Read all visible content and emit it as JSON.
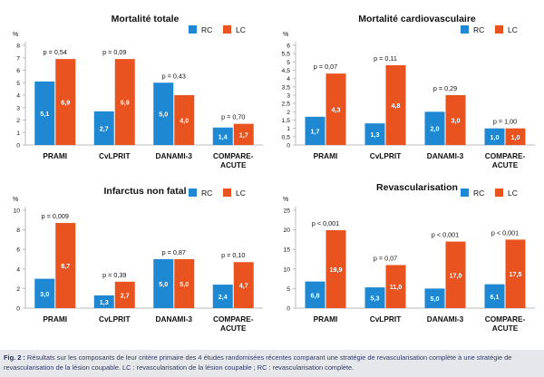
{
  "legend": {
    "rc": "RC",
    "lc": "LC"
  },
  "colors": {
    "rc": "#1e88d2",
    "lc": "#e9531f",
    "axis": "#bbbbbb",
    "text": "#111111"
  },
  "caption": {
    "label": "Fig. 2 :",
    "text": "Résultats sur les composants de leur critère primaire des 4 études randomisées récentes comparant une stratégie de revascularisation complète à une stratégie de revascularisation de la lésion coupable. LC : revascularisation de la lésion coupable ; RC : revascularisation complète."
  },
  "chart_data": [
    {
      "type": "bar",
      "title": "Mortalité totale",
      "ylabel": "%",
      "ylim": [
        0,
        8
      ],
      "yticks": [
        0,
        1,
        2,
        3,
        4,
        5,
        6,
        7,
        8
      ],
      "categories": [
        "PRAMI",
        "CvLPRIT",
        "DANAMI-3",
        "COMPARE-ACUTE"
      ],
      "category_labels": [
        [
          "PRAMI"
        ],
        [
          "CvLPRIT"
        ],
        [
          "DANAMI-3"
        ],
        [
          "COMPARE-",
          "ACUTE"
        ]
      ],
      "series": [
        {
          "name": "RC",
          "values": [
            5.1,
            2.7,
            5.0,
            1.4
          ]
        },
        {
          "name": "LC",
          "values": [
            6.9,
            6.9,
            4.0,
            1.7
          ]
        }
      ],
      "value_labels": {
        "RC": [
          "5,1",
          "2,7",
          "5,0",
          "1,4"
        ],
        "LC": [
          "6,9",
          "6,9",
          "4,0",
          "1,7"
        ]
      },
      "pvalues": [
        "p = 0,54",
        "p = 0,09",
        "p = 0,43",
        "p = 0,70"
      ],
      "legend_position": "top-right",
      "grid": false
    },
    {
      "type": "bar",
      "title": "Mortalité cardiovasculaire",
      "ylabel": "%",
      "ylim": [
        0,
        6
      ],
      "yticks": [
        0,
        0.5,
        1,
        1.5,
        2,
        2.5,
        3,
        3.5,
        4,
        4.5,
        5,
        5.5,
        6
      ],
      "ytick_labels": [
        "0",
        "0,5",
        "1",
        "1,5",
        "2",
        "2,5",
        "3",
        "3,5",
        "4",
        "4,5",
        "5",
        "5,5",
        "6"
      ],
      "categories": [
        "PRAMI",
        "CvLPRIT",
        "DANAMI-3",
        "COMPARE-ACUTE"
      ],
      "category_labels": [
        [
          "PRAMI"
        ],
        [
          "CvLPRIT"
        ],
        [
          "DANAMI-3"
        ],
        [
          "COMPARE-",
          "ACUTE"
        ]
      ],
      "series": [
        {
          "name": "RC",
          "values": [
            1.7,
            1.3,
            2.0,
            1.0
          ]
        },
        {
          "name": "LC",
          "values": [
            4.3,
            4.8,
            3.0,
            1.0
          ]
        }
      ],
      "value_labels": {
        "RC": [
          "1,7",
          "1,3",
          "2,0",
          "1,0"
        ],
        "LC": [
          "4,3",
          "4,8",
          "3,0",
          "1,0"
        ]
      },
      "pvalues": [
        "p = 0,07",
        "p = 0,11",
        "p = 0,29",
        "p = 1,00"
      ],
      "legend_position": "top-right",
      "grid": false
    },
    {
      "type": "bar",
      "title": "Infarctus non fatal",
      "ylabel": "%",
      "ylim": [
        0,
        10
      ],
      "yticks": [
        0,
        2,
        4,
        6,
        8,
        10
      ],
      "categories": [
        "PRAMI",
        "CvLPRIT",
        "DANAMI-3",
        "COMPARE-ACUTE"
      ],
      "category_labels": [
        [
          "PRAMI"
        ],
        [
          "CvLPRIT"
        ],
        [
          "DANAMI-3"
        ],
        [
          "COMPARE-",
          "ACUTE"
        ]
      ],
      "series": [
        {
          "name": "RC",
          "values": [
            3.0,
            1.3,
            5.0,
            2.4
          ]
        },
        {
          "name": "LC",
          "values": [
            8.7,
            2.7,
            5.0,
            4.7
          ]
        }
      ],
      "value_labels": {
        "RC": [
          "3,0",
          "1,3",
          "5,0",
          "2,4"
        ],
        "LC": [
          "8,7",
          "2,7",
          "5,0",
          "4,7"
        ]
      },
      "pvalues": [
        "p = 0,009",
        "p = 0,39",
        "p = 0,87",
        "p = 0,10"
      ],
      "legend_position": "top-right",
      "grid": false
    },
    {
      "type": "bar",
      "title": "Revascularisation",
      "ylabel": "%",
      "ylim": [
        0,
        25
      ],
      "yticks": [
        0,
        5,
        10,
        15,
        20,
        25
      ],
      "categories": [
        "PRAMI",
        "CvLPRIT",
        "DANAMI-3",
        "COMPARE-ACUTE"
      ],
      "category_labels": [
        [
          "PRAMI"
        ],
        [
          "CvLPRIT"
        ],
        [
          "DANAMI-3"
        ],
        [
          "COMPARE-",
          "ACUTE"
        ]
      ],
      "series": [
        {
          "name": "RC",
          "values": [
            6.8,
            5.3,
            5.0,
            6.1
          ]
        },
        {
          "name": "LC",
          "values": [
            19.9,
            11.0,
            17.0,
            17.5
          ]
        }
      ],
      "value_labels": {
        "RC": [
          "6,8",
          "5,3",
          "5,0",
          "6,1"
        ],
        "LC": [
          "19,9",
          "11,0",
          "17,0",
          "17,5"
        ]
      },
      "pvalues": [
        "p < 0,001",
        "p = 0,07",
        "p < 0,001",
        "p < 0,001"
      ],
      "legend_position": "top-right",
      "grid": false
    }
  ]
}
